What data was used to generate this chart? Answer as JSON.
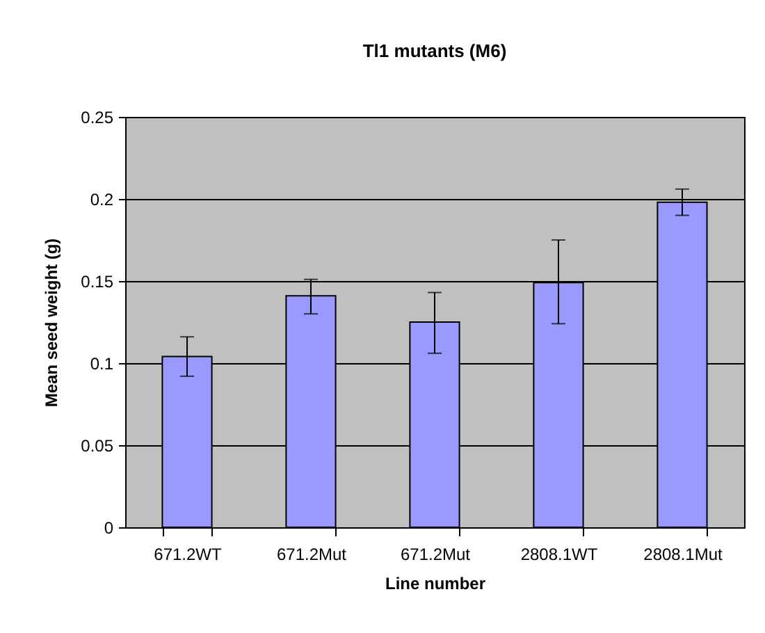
{
  "chart_data": {
    "type": "bar",
    "title": "Tl1 mutants (M6)",
    "xlabel": "Line number",
    "ylabel": "Mean seed weight (g)",
    "categories": [
      "671.2WT",
      "671.2Mut",
      "671.2Mut",
      "2808.1WT",
      "2808.1Mut"
    ],
    "values": [
      0.104,
      0.141,
      0.125,
      0.149,
      0.198
    ],
    "errors": [
      [
        0.092,
        0.116
      ],
      [
        0.13,
        0.151
      ],
      [
        0.106,
        0.143
      ],
      [
        0.124,
        0.175
      ],
      [
        0.19,
        0.206
      ]
    ],
    "color": "#9999ff",
    "ylim": [
      0,
      0.25
    ],
    "yticks": [
      0,
      0.05,
      0.1,
      0.15,
      0.2,
      0.25
    ],
    "grid": "y"
  }
}
